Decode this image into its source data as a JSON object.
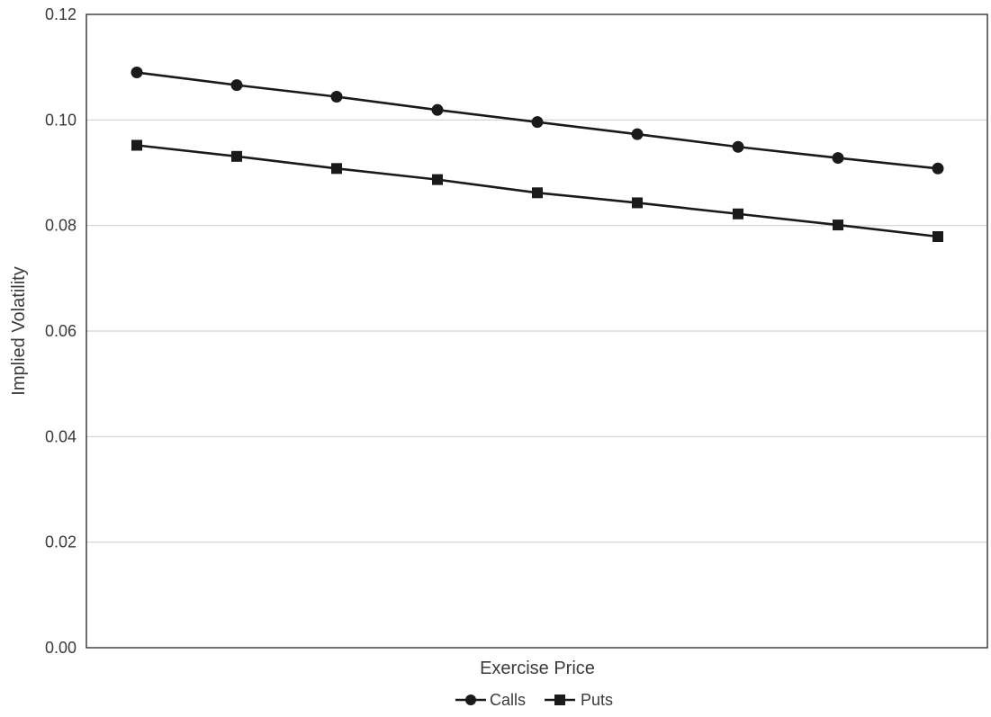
{
  "chart_data": {
    "type": "line",
    "title": "",
    "xlabel": "Exercise Price",
    "ylabel": "Implied Volatility",
    "x": [
      1,
      2,
      3,
      4,
      5,
      6,
      7,
      8,
      9
    ],
    "x_tick_labels": [],
    "ylim": [
      0,
      0.12
    ],
    "yticks": [
      0.0,
      0.02,
      0.04,
      0.06,
      0.08,
      0.1,
      0.12
    ],
    "ytick_labels": [
      "0.00",
      "0.02",
      "0.04",
      "0.06",
      "0.08",
      "0.10",
      "0.12"
    ],
    "grid": "horizontal",
    "legend_position": "bottom-center",
    "series": [
      {
        "name": "Calls",
        "marker": "circle",
        "color": "#1a1a1a",
        "values": [
          0.109,
          0.1066,
          0.1044,
          0.1019,
          0.0996,
          0.0973,
          0.0949,
          0.0928,
          0.0908
        ]
      },
      {
        "name": "Puts",
        "marker": "square",
        "color": "#1a1a1a",
        "values": [
          0.0952,
          0.0931,
          0.0908,
          0.0887,
          0.0862,
          0.0843,
          0.0822,
          0.0801,
          0.0779
        ]
      }
    ]
  }
}
